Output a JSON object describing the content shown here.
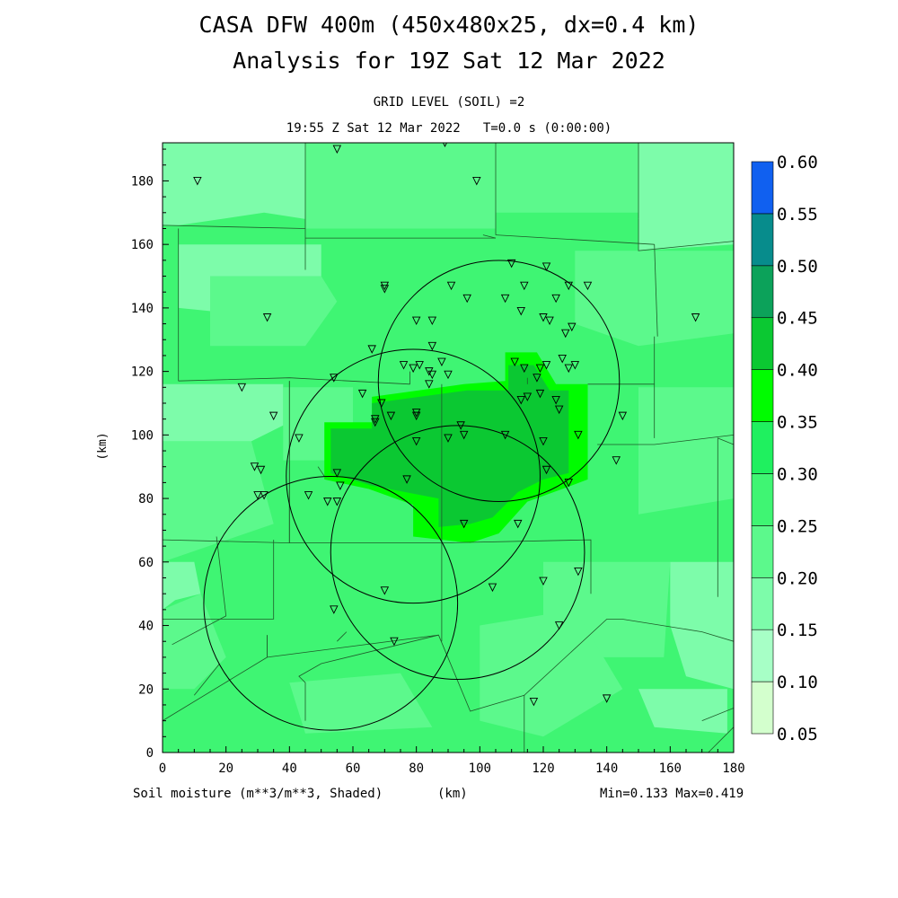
{
  "header": {
    "title_line1": "CASA DFW 400m (450x480x25, dx=0.4 km)",
    "title_line2": "Analysis for 19Z Sat 12 Mar 2022",
    "level_line": "GRID LEVEL (SOIL) =2",
    "time_line": "19:55 Z Sat 12 Mar 2022   T=0.0 s (0:00:00)"
  },
  "footer": {
    "variable": "Soil moisture (m**3/m**3, Shaded)",
    "x_unit": "(km)",
    "minmax": "Min=0.133 Max=0.419"
  },
  "colors": {
    "background_field": "#3ff573",
    "c020_025": "#5cf98c",
    "c015_020": "#7dfcaa",
    "c035_040": "#00fc00",
    "c040_045": "#0bc832",
    "c045_050": "#0ca25a",
    "c050_055": "#078c8c",
    "c055_060": "#1060f0",
    "c010_015": "#a7ffc6",
    "c005_010": "#d3ffcd"
  },
  "chart_data": {
    "type": "heatmap",
    "x_label": "(km)",
    "y_label": "(km)",
    "xlim": [
      0,
      180
    ],
    "ylim": [
      0,
      192
    ],
    "x_ticks": [
      0,
      20,
      40,
      60,
      80,
      100,
      120,
      140,
      160,
      180
    ],
    "y_ticks": [
      0,
      20,
      40,
      60,
      80,
      100,
      120,
      140,
      160,
      180
    ],
    "colorbar": {
      "levels": [
        0.05,
        0.1,
        0.15,
        0.2,
        0.25,
        0.3,
        0.35,
        0.4,
        0.45,
        0.5,
        0.55,
        0.6
      ],
      "labels": [
        "0.05",
        "0.10",
        "0.15",
        "0.20",
        "0.25",
        "0.30",
        "0.35",
        "0.40",
        "0.45",
        "0.50",
        "0.55",
        "0.60"
      ],
      "colors": [
        "#d3ffcd",
        "#a7ffc6",
        "#7dfcaa",
        "#5cf98c",
        "#3ff573",
        "#1ff05f",
        "#00fc00",
        "#0bc832",
        "#0ca25a",
        "#078c8c",
        "#1060f0"
      ]
    },
    "min": 0.133,
    "max": 0.419,
    "radar_rings": [
      {
        "cx": 106,
        "cy": 117,
        "r": 38
      },
      {
        "cx": 79,
        "cy": 87,
        "r": 40
      },
      {
        "cx": 93,
        "cy": 63,
        "r": 40
      },
      {
        "cx": 53,
        "cy": 47,
        "r": 40
      }
    ],
    "stations": [
      [
        11,
        180
      ],
      [
        55,
        190
      ],
      [
        89,
        192
      ],
      [
        99,
        180
      ],
      [
        70,
        147
      ],
      [
        70,
        146
      ],
      [
        91,
        147
      ],
      [
        108,
        143
      ],
      [
        110,
        154
      ],
      [
        113,
        139
      ],
      [
        114,
        147
      ],
      [
        121,
        153
      ],
      [
        124,
        143
      ],
      [
        128,
        147
      ],
      [
        134,
        147
      ],
      [
        96,
        143
      ],
      [
        80,
        136
      ],
      [
        85,
        136
      ],
      [
        120,
        137
      ],
      [
        122,
        136
      ],
      [
        127,
        132
      ],
      [
        129,
        134
      ],
      [
        33,
        137
      ],
      [
        168,
        137
      ],
      [
        66,
        127
      ],
      [
        76,
        122
      ],
      [
        81,
        122
      ],
      [
        85,
        128
      ],
      [
        79,
        121
      ],
      [
        88,
        123
      ],
      [
        84,
        120
      ],
      [
        85,
        119
      ],
      [
        90,
        119
      ],
      [
        84,
        116
      ],
      [
        126,
        124
      ],
      [
        111,
        123
      ],
      [
        114,
        121
      ],
      [
        119,
        121
      ],
      [
        121,
        122
      ],
      [
        128,
        121
      ],
      [
        130,
        122
      ],
      [
        118,
        118
      ],
      [
        119,
        113
      ],
      [
        115,
        112
      ],
      [
        113,
        111
      ],
      [
        124,
        111
      ],
      [
        125,
        108
      ],
      [
        145,
        106
      ],
      [
        25,
        115
      ],
      [
        54,
        118
      ],
      [
        63,
        113
      ],
      [
        69,
        110
      ],
      [
        67,
        105
      ],
      [
        67,
        104
      ],
      [
        72,
        106
      ],
      [
        80,
        107
      ],
      [
        80,
        106
      ],
      [
        35,
        106
      ],
      [
        43,
        99
      ],
      [
        94,
        103
      ],
      [
        95,
        100
      ],
      [
        90,
        99
      ],
      [
        80,
        98
      ],
      [
        108,
        100
      ],
      [
        131,
        100
      ],
      [
        120,
        98
      ],
      [
        143,
        92
      ],
      [
        121,
        89
      ],
      [
        128,
        85
      ],
      [
        29,
        90
      ],
      [
        31,
        89
      ],
      [
        30,
        81
      ],
      [
        32,
        81
      ],
      [
        55,
        88
      ],
      [
        56,
        84
      ],
      [
        77,
        86
      ],
      [
        46,
        81
      ],
      [
        52,
        79
      ],
      [
        55,
        79
      ],
      [
        95,
        72
      ],
      [
        112,
        72
      ],
      [
        131,
        57
      ],
      [
        120,
        54
      ],
      [
        104,
        52
      ],
      [
        70,
        51
      ],
      [
        54,
        45
      ],
      [
        125,
        40
      ],
      [
        73,
        35
      ],
      [
        117,
        16
      ],
      [
        140,
        17
      ]
    ]
  }
}
